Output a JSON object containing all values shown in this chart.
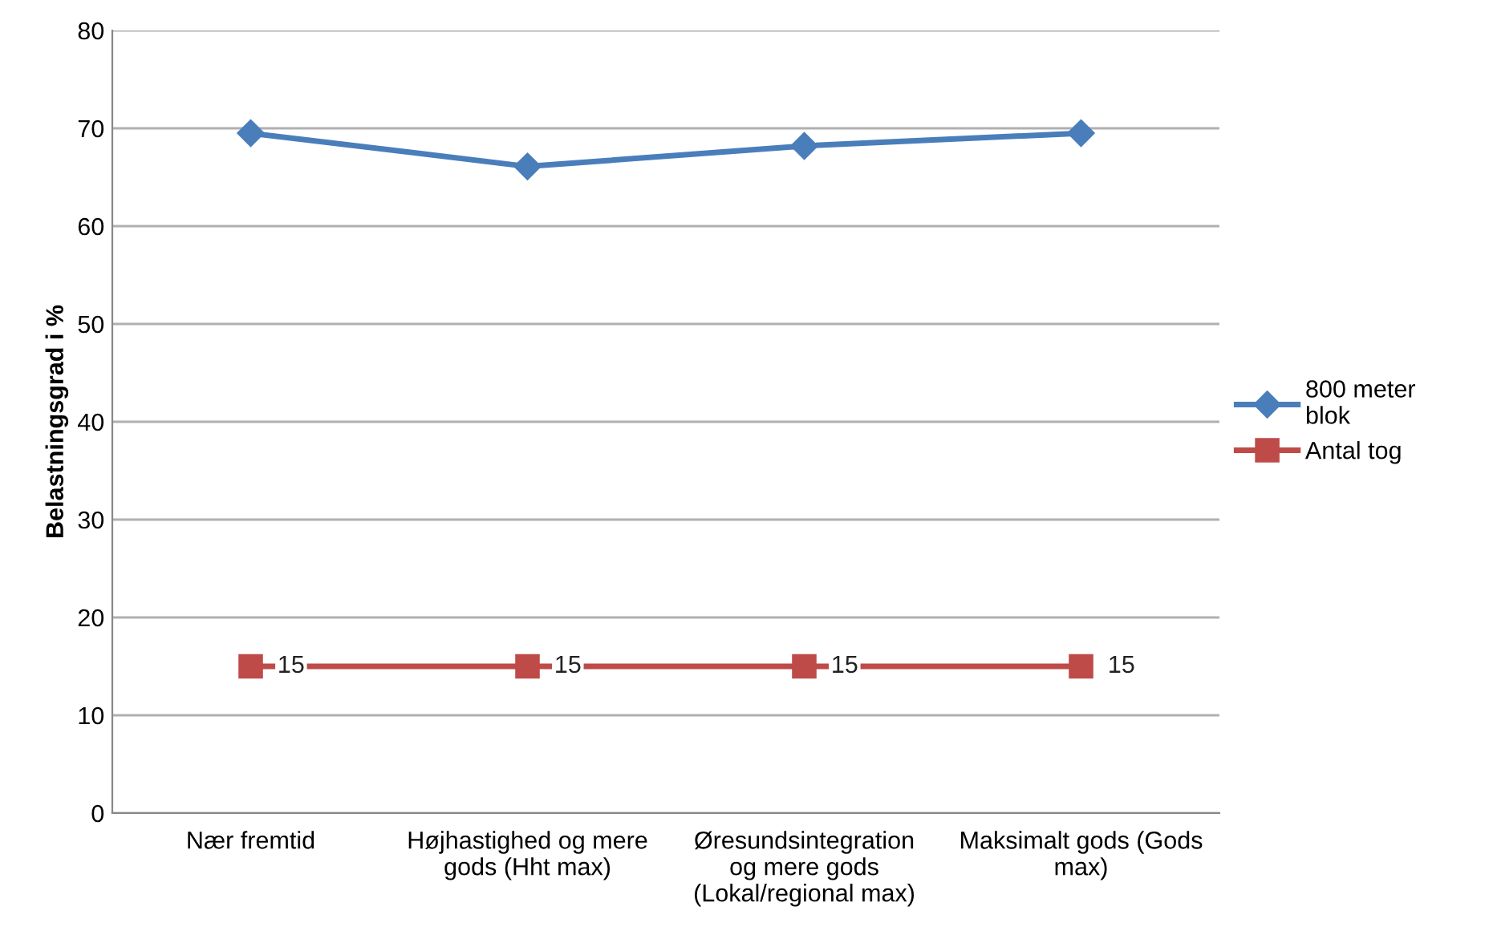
{
  "chart_data": {
    "type": "line",
    "ylabel": "Belastningsgrad i %",
    "categories": [
      "Nær fremtid",
      "Højhastighed og mere\ngods (Hht max)",
      "Øresundsintegration\nog mere gods\n(Lokal/regional max)",
      "Maksimalt gods (Gods\nmax)"
    ],
    "series": [
      {
        "name": "800 meter\nblok",
        "color": "#4a7ebb",
        "marker": "diamond",
        "values": [
          69.5,
          66.1,
          68.2,
          69.5
        ]
      },
      {
        "name": "Antal tog",
        "color": "#be4b48",
        "marker": "square",
        "values": [
          15,
          15,
          15,
          15
        ],
        "value_labels": [
          "15",
          "15",
          "15",
          "15"
        ]
      }
    ],
    "ylim": [
      0,
      80
    ],
    "yticks": [
      0,
      10,
      20,
      30,
      40,
      50,
      60,
      70,
      80
    ],
    "grid": "y",
    "legend": "right"
  }
}
